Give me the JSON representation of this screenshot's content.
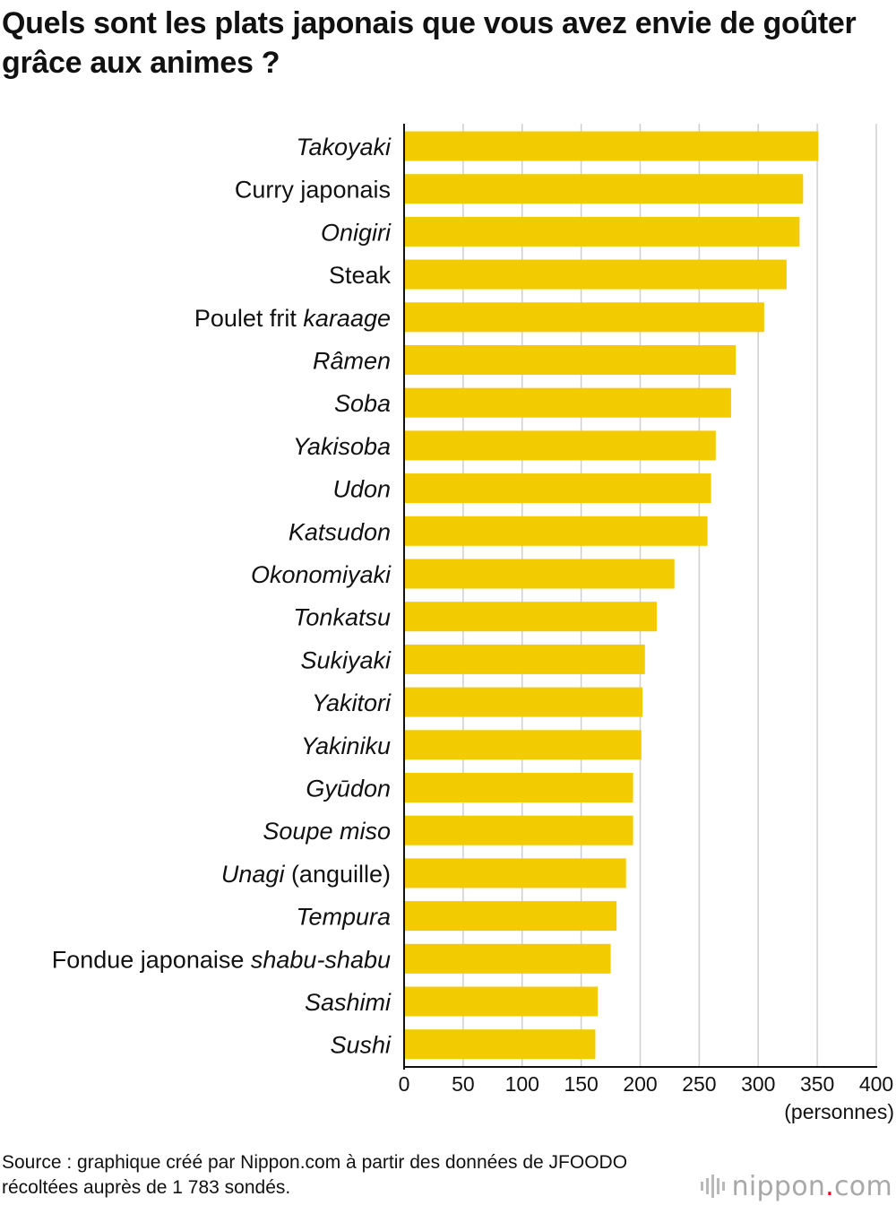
{
  "title": "Quels sont les plats japonais que vous avez envie de goûter grâce aux animes ?",
  "source": "Source : graphique créé par Nippon.com à partir des données de JFOODO récoltées auprès de 1 783 sondés.",
  "logo": {
    "text_before": "nippon",
    "dot": ".",
    "text_after": "com",
    "icon": "nippon-logo-bars-icon"
  },
  "colors": {
    "bar": "#F2CB00",
    "grid": "#cfcfcf",
    "axis": "#111111",
    "logo_dot": "#e60012"
  },
  "chart_data": {
    "type": "bar",
    "orientation": "horizontal",
    "unit": "(personnes)",
    "xlim": [
      0,
      400
    ],
    "ticks": [
      0,
      50,
      100,
      150,
      200,
      250,
      300,
      350,
      400
    ],
    "grid": true,
    "categories": [
      [
        {
          "t": "Takoyaki",
          "i": true
        }
      ],
      [
        {
          "t": "Curry japonais",
          "i": false
        }
      ],
      [
        {
          "t": "Onigiri",
          "i": true
        }
      ],
      [
        {
          "t": "Steak",
          "i": false
        }
      ],
      [
        {
          "t": "Poulet frit ",
          "i": false
        },
        {
          "t": "karaage",
          "i": true
        }
      ],
      [
        {
          "t": "Râmen",
          "i": true
        }
      ],
      [
        {
          "t": "Soba",
          "i": true
        }
      ],
      [
        {
          "t": "Yakisoba",
          "i": true
        }
      ],
      [
        {
          "t": "Udon",
          "i": true
        }
      ],
      [
        {
          "t": "Katsudon",
          "i": true
        }
      ],
      [
        {
          "t": "Okonomiyaki",
          "i": true
        }
      ],
      [
        {
          "t": "Tonkatsu",
          "i": true
        }
      ],
      [
        {
          "t": "Sukiyaki",
          "i": true
        }
      ],
      [
        {
          "t": "Yakitori",
          "i": true
        }
      ],
      [
        {
          "t": "Yakiniku",
          "i": true
        }
      ],
      [
        {
          "t": "Gyūdon",
          "i": true
        }
      ],
      [
        {
          "t": "Soupe miso",
          "i": true
        }
      ],
      [
        {
          "t": "Unagi",
          "i": true
        },
        {
          "t": " (anguille)",
          "i": false
        }
      ],
      [
        {
          "t": "Tempura",
          "i": true
        }
      ],
      [
        {
          "t": "Fondue japonaise ",
          "i": false
        },
        {
          "t": "shabu-shabu",
          "i": true
        }
      ],
      [
        {
          "t": "Sashimi",
          "i": true
        }
      ],
      [
        {
          "t": "Sushi",
          "i": true
        }
      ]
    ],
    "values": [
      351,
      338,
      335,
      324,
      305,
      281,
      277,
      264,
      260,
      257,
      229,
      214,
      204,
      202,
      201,
      194,
      194,
      188,
      180,
      175,
      164,
      162
    ]
  }
}
